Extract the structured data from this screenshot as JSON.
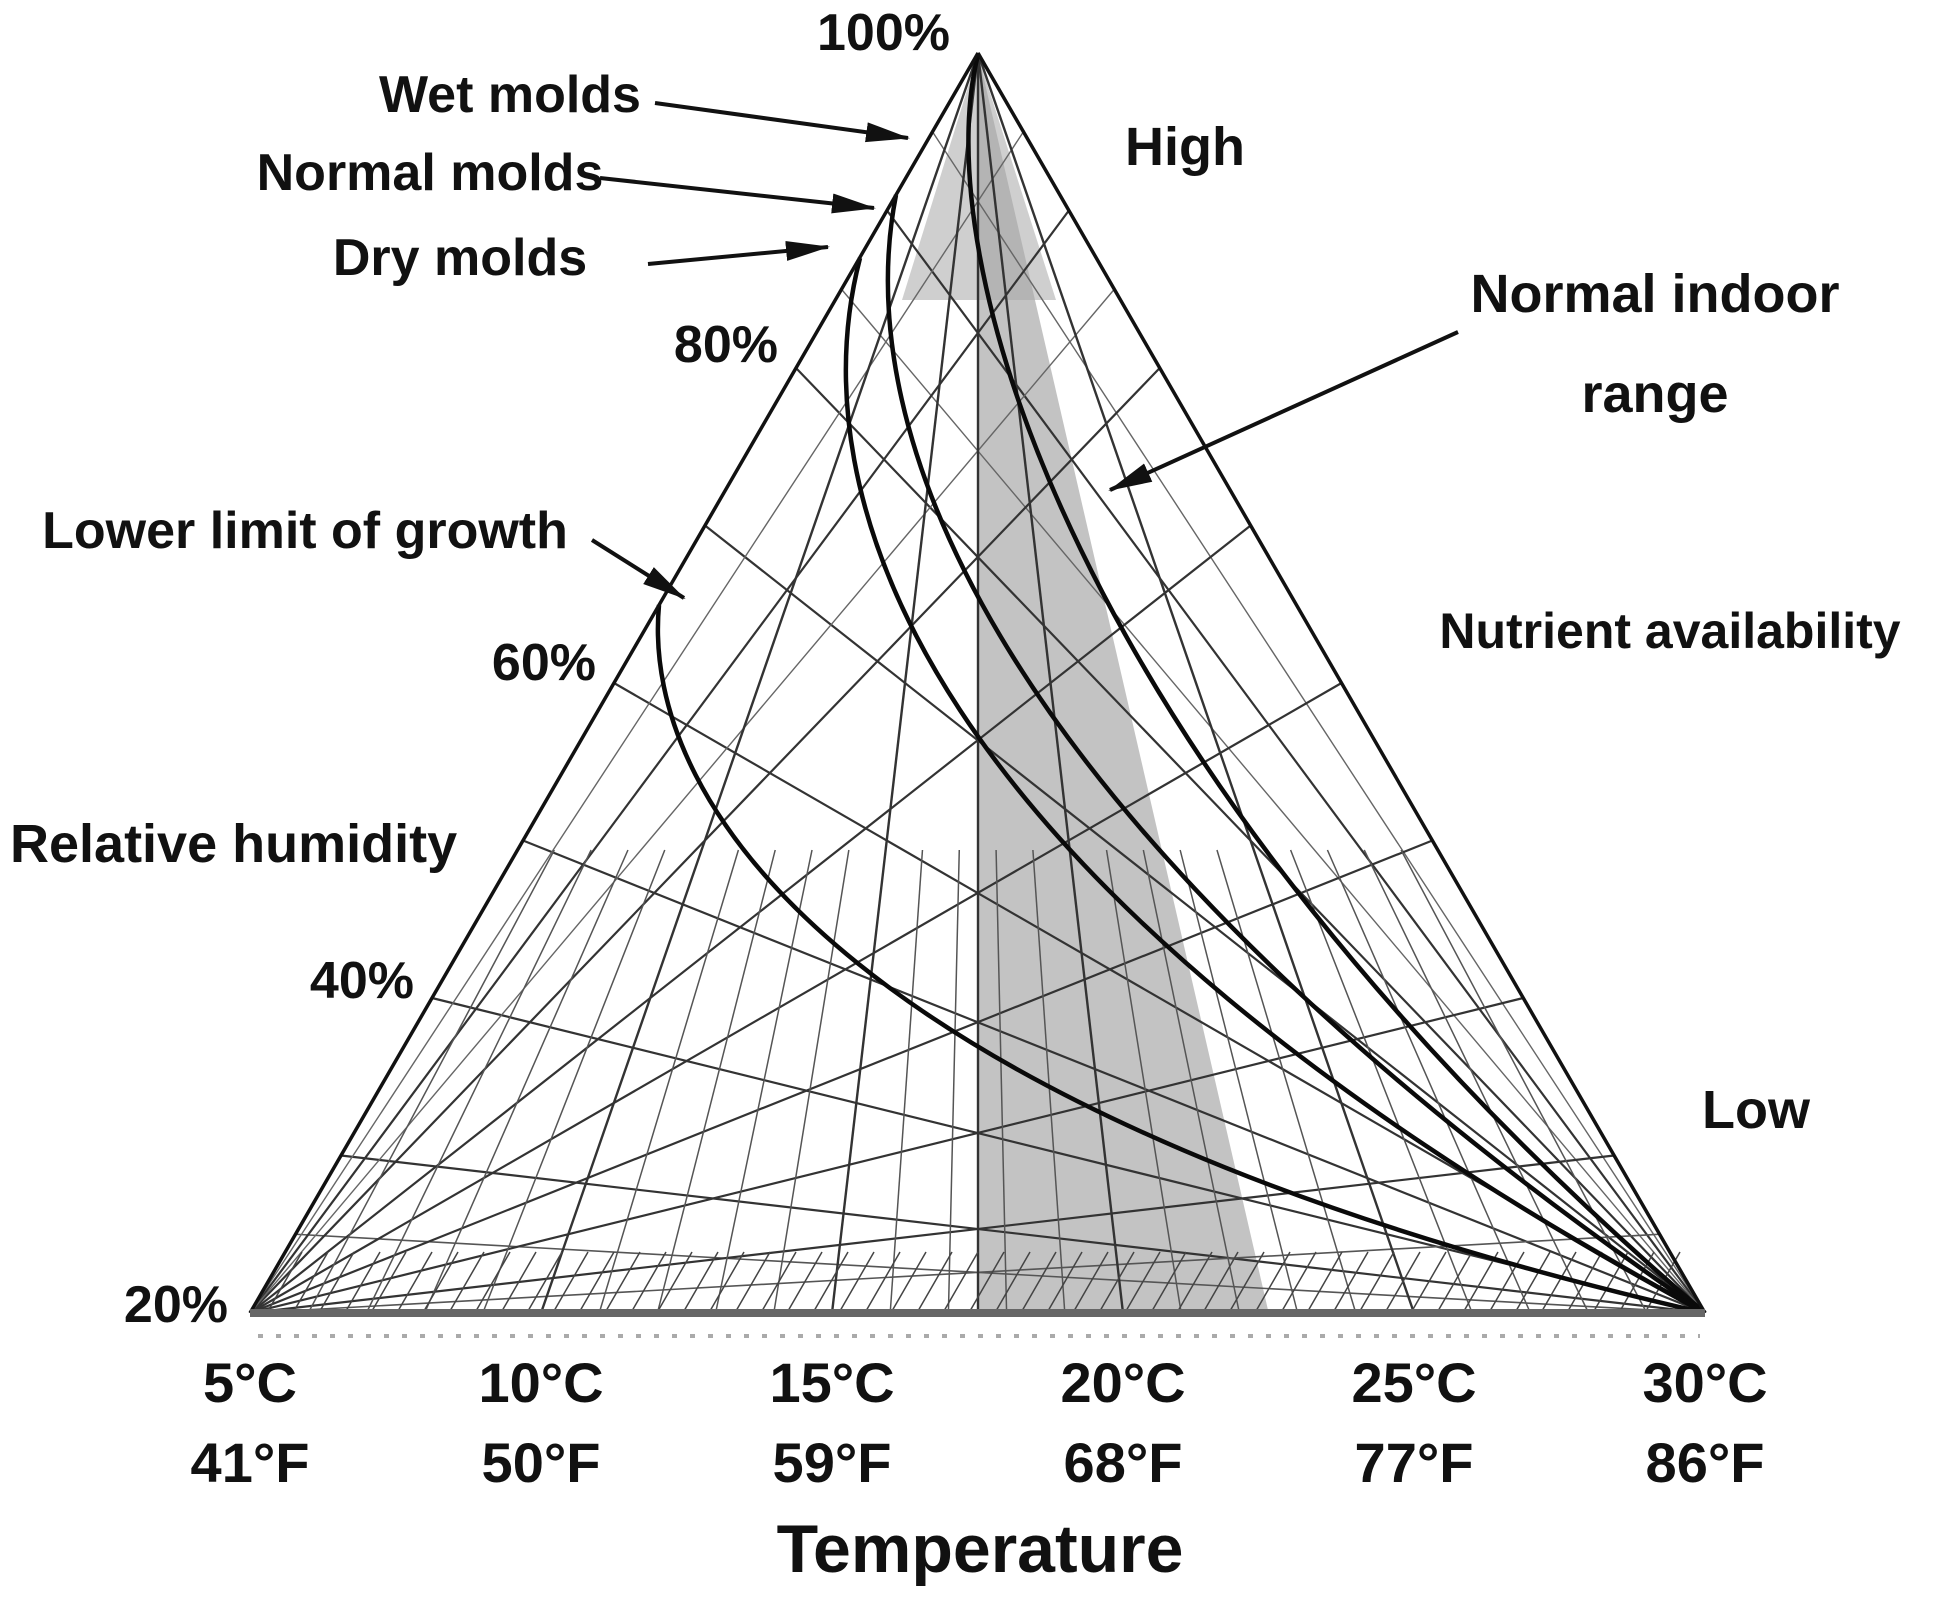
{
  "annotations": {
    "wet_molds": "Wet molds",
    "normal_molds": "Normal molds",
    "dry_molds": "Dry molds",
    "lower_limit": "Lower limit of growth",
    "normal_indoor_line1": "Normal indoor",
    "normal_indoor_line2": "range",
    "high": "High",
    "low": "Low",
    "nutrient": "Nutrient availability",
    "relative_humidity": "Relative humidity",
    "temperature": "Temperature"
  },
  "humidity_ticks": [
    "100%",
    "80%",
    "60%",
    "40%",
    "20%"
  ],
  "temp_axis": [
    {
      "c": "5°C",
      "f": "41°F"
    },
    {
      "c": "10°C",
      "f": "50°F"
    },
    {
      "c": "15°C",
      "f": "59°F"
    },
    {
      "c": "20°C",
      "f": "68°F"
    },
    {
      "c": "25°C",
      "f": "77°F"
    },
    {
      "c": "30°C",
      "f": "86°F"
    }
  ],
  "colors": {
    "ink": "#111111",
    "grid": "#333333",
    "shaded_band": "#b9b9b9",
    "baseline": "#666666"
  },
  "chart_data": {
    "type": "line",
    "title": "Mold growth conditions triangle",
    "xlabel": "Temperature",
    "x_ticks_c": [
      "5°C",
      "10°C",
      "15°C",
      "20°C",
      "25°C",
      "30°C"
    ],
    "x_ticks_f": [
      "41°F",
      "50°F",
      "59°F",
      "68°F",
      "77°F",
      "86°F"
    ],
    "x_range_c": [
      5,
      30
    ],
    "left_axis": {
      "label": "Relative humidity",
      "ticks": [
        "100%",
        "80%",
        "60%",
        "40%",
        "20%"
      ],
      "range_percent": [
        20,
        100
      ]
    },
    "right_axis": {
      "label": "Nutrient availability",
      "top_label": "High",
      "bottom_label": "Low"
    },
    "grid": true,
    "series": [
      {
        "name": "Wet molds",
        "points": [
          {
            "t_c": 17.5,
            "rh_percent": 100
          },
          {
            "t_c": 30,
            "rh_percent": 20
          }
        ]
      },
      {
        "name": "Normal molds",
        "points": [
          {
            "t_c": 16.9,
            "rh_percent": 93
          },
          {
            "t_c": 30,
            "rh_percent": 20
          }
        ]
      },
      {
        "name": "Dry molds",
        "points": [
          {
            "t_c": 16.6,
            "rh_percent": 88
          },
          {
            "t_c": 30,
            "rh_percent": 20
          }
        ]
      },
      {
        "name": "Lower limit of growth",
        "points": [
          {
            "t_c": 15.1,
            "rh_percent": 65
          },
          {
            "t_c": 30,
            "rh_percent": 20
          }
        ]
      }
    ],
    "shaded_region": {
      "label": "Normal indoor range",
      "temperature_range_c": [
        17.5,
        22.5
      ],
      "humidity_top_percent": 100
    }
  }
}
